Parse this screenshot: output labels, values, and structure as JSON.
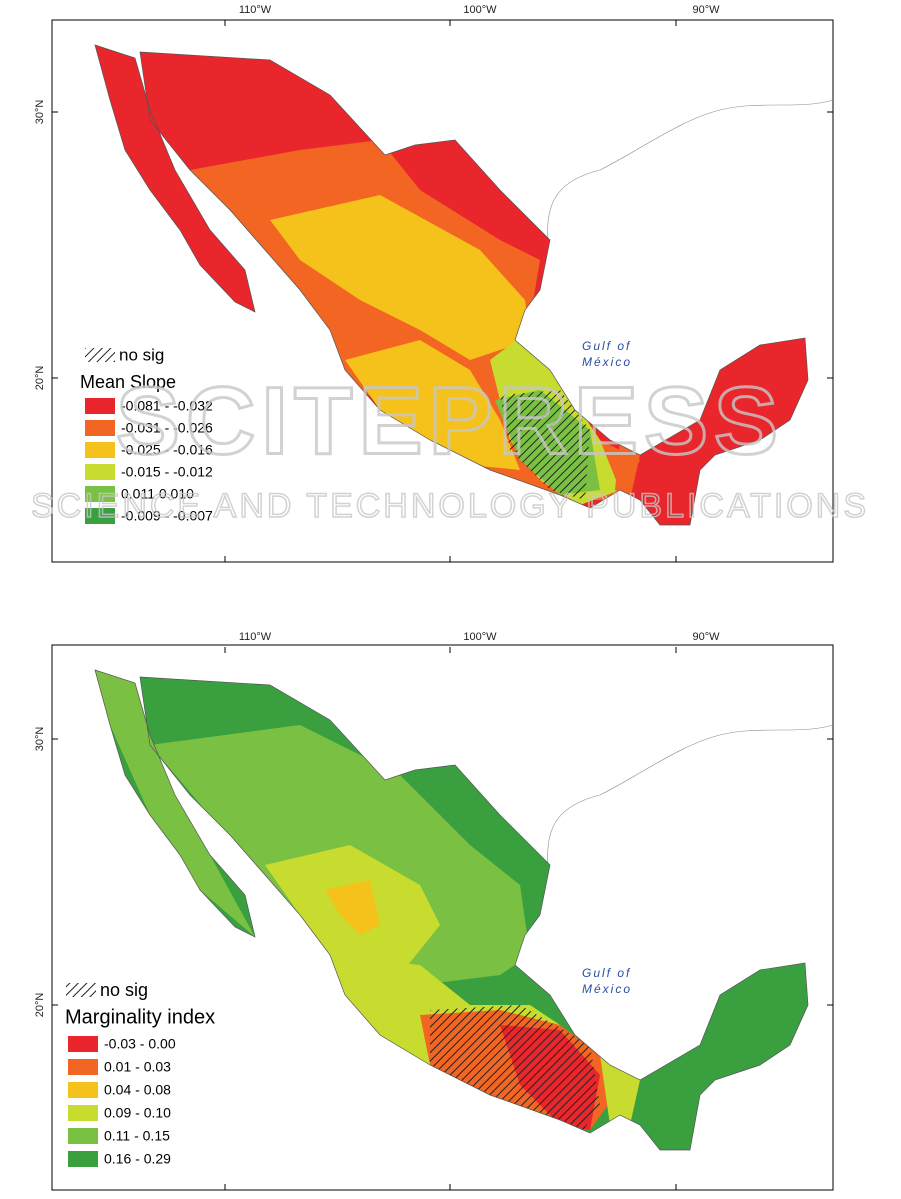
{
  "maps": [
    {
      "lon_labels": [
        "110°W",
        "100°W",
        "90°W"
      ],
      "lat_labels": [
        "30°N",
        "20°N"
      ],
      "gulf_label": [
        "Gulf of",
        "México"
      ],
      "legend": {
        "hatch_label": "no sig",
        "title": "Mean Slope",
        "items": [
          {
            "label": "-0.081 - -0.032",
            "color": "#e8262b"
          },
          {
            "label": "-0.031 - -0.026",
            "color": "#f26522"
          },
          {
            "label": "-0.025 - -0.016",
            "color": "#f4c21b"
          },
          {
            "label": "-0.015 - -0.012",
            "color": "#c8dc2f"
          },
          {
            "label": "0.011   0.010",
            "color": "#7ac143"
          },
          {
            "label": "-0.009 - -0.007",
            "color": "#3aa03f"
          }
        ]
      }
    },
    {
      "lon_labels": [
        "110°W",
        "100°W",
        "90°W"
      ],
      "lat_labels": [
        "30°N",
        "20°N"
      ],
      "gulf_label": [
        "Gulf of",
        "México"
      ],
      "legend": {
        "hatch_label": "no sig",
        "title": "Marginality index",
        "items": [
          {
            "label": "-0.03 - 0.00",
            "color": "#e8262b"
          },
          {
            "label": "0.01 - 0.03",
            "color": "#f26522"
          },
          {
            "label": "0.04 - 0.08",
            "color": "#f4c21b"
          },
          {
            "label": "0.09 - 0.10",
            "color": "#c8dc2f"
          },
          {
            "label": "0.11 - 0.15",
            "color": "#7ac143"
          },
          {
            "label": "0.16 - 0.29",
            "color": "#3aa03f"
          }
        ]
      }
    }
  ],
  "watermark": {
    "brand": "SCITEPRESS",
    "tagline": "SCIENCE AND TECHNOLOGY PUBLICATIONS"
  }
}
